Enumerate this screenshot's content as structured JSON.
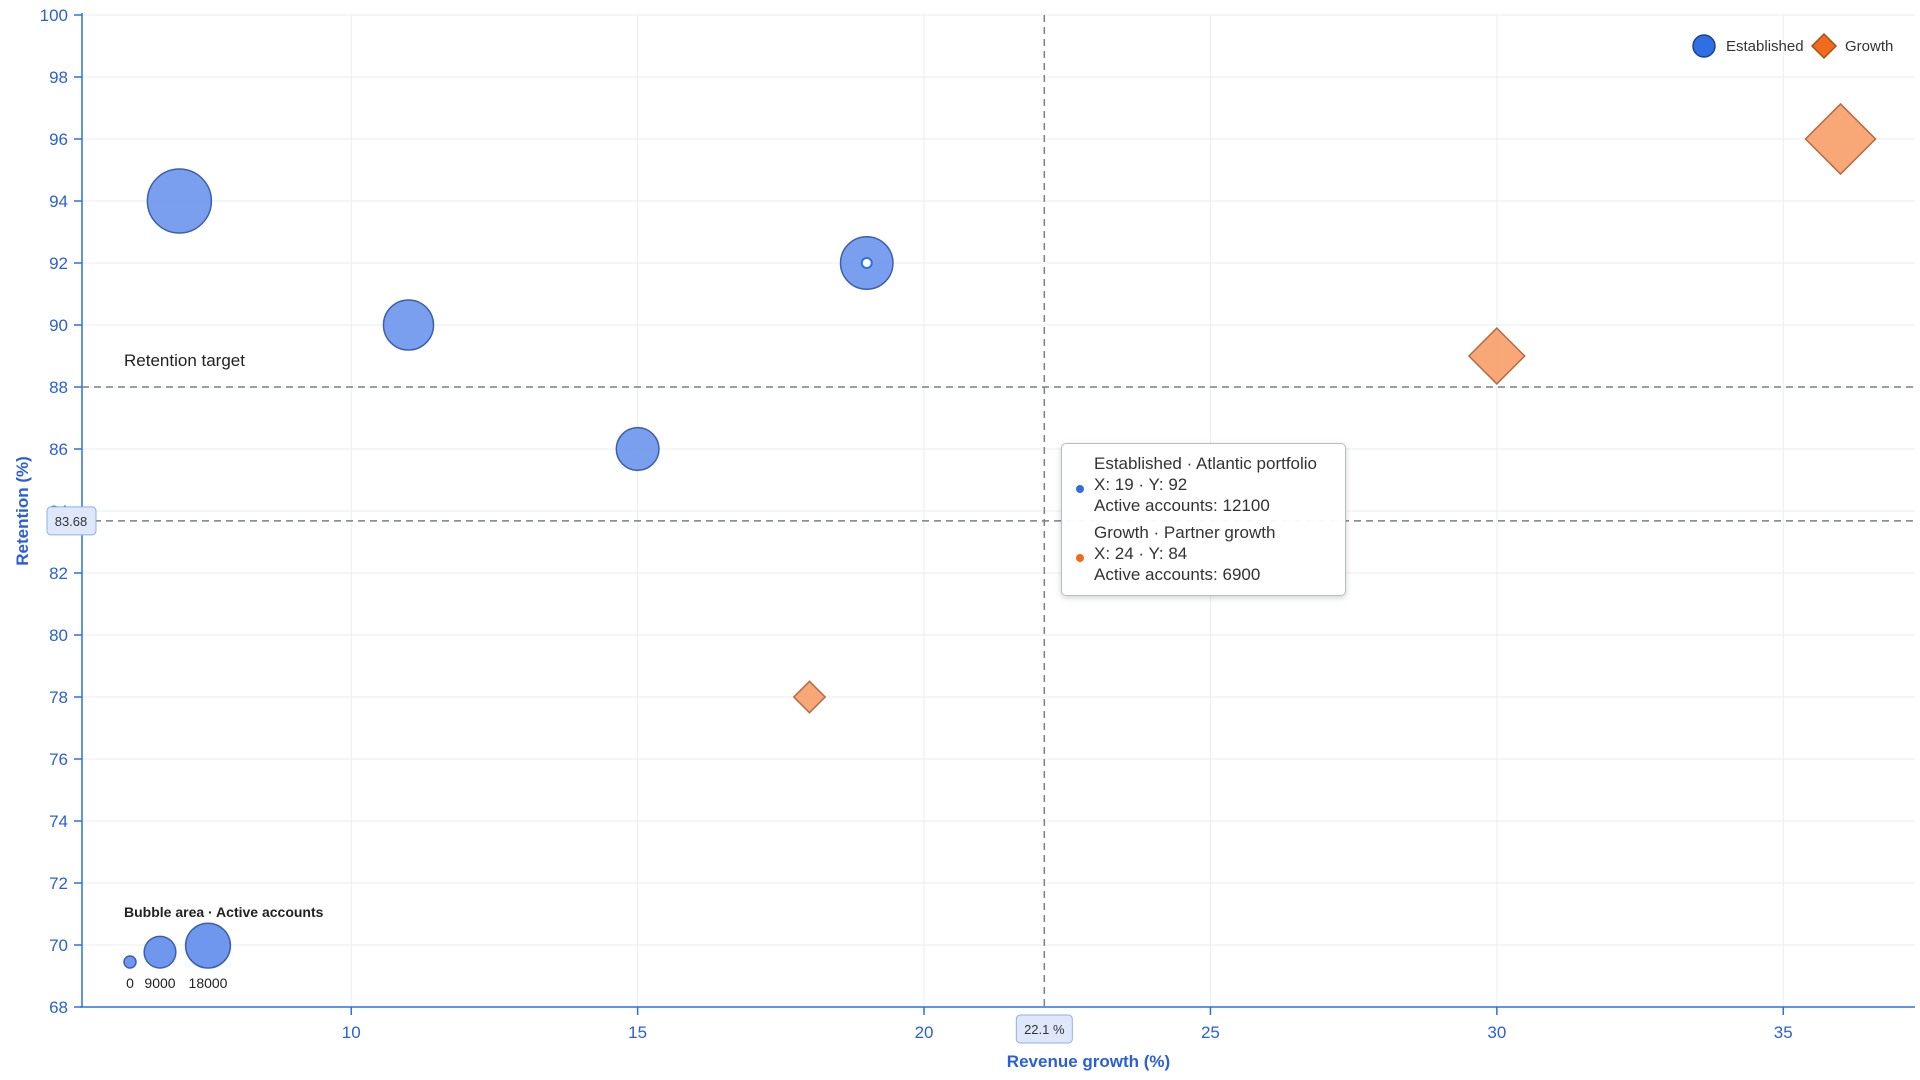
{
  "chart_data": {
    "type": "scatter",
    "subtype": "bubble",
    "xlabel": "Revenue growth (%)",
    "ylabel": "Retention (%)",
    "xlim": [
      5.3,
      37.3
    ],
    "ylim": [
      68,
      100
    ],
    "x_ticks": [
      10,
      15,
      20,
      25,
      30,
      35
    ],
    "y_ticks": [
      68,
      70,
      72,
      74,
      76,
      78,
      80,
      82,
      84,
      86,
      88,
      90,
      92,
      94,
      96,
      98,
      100
    ],
    "grid": true,
    "legend_position": "top-right",
    "size_metric": "Active accounts",
    "series": [
      {
        "name": "Established",
        "marker": "circle",
        "color": "#2f6fe4",
        "points": [
          {
            "x": 7,
            "y": 94,
            "size": 18000
          },
          {
            "x": 11,
            "y": 90,
            "size": 11000
          },
          {
            "x": 15,
            "y": 86,
            "size": 8000
          },
          {
            "x": 19,
            "y": 92,
            "size": 12100
          }
        ]
      },
      {
        "name": "Growth",
        "marker": "diamond",
        "color": "#f26b1d",
        "points": [
          {
            "x": 18,
            "y": 78,
            "size": 3000
          },
          {
            "x": 30,
            "y": 89,
            "size": 9500
          },
          {
            "x": 36,
            "y": 96,
            "size": 15000
          }
        ]
      }
    ],
    "reference_line": {
      "y": 88,
      "label": "Retention target"
    },
    "crosshair": {
      "x": 22.1,
      "y": 83.68,
      "x_label": "22.1 %",
      "y_label": "83.68"
    },
    "highlight_point": {
      "series": "Established",
      "x": 19,
      "y": 92
    },
    "size_legend": {
      "title": "Bubble area · Active accounts",
      "values": [
        0,
        9000,
        18000
      ],
      "labels": [
        "0",
        "9000",
        "18000"
      ]
    },
    "tooltip": [
      {
        "color": "#2f6fe4",
        "title": "Established · Atlantic portfolio",
        "coords": "X: 19 · Y: 92",
        "detail": "Active accounts: 12100"
      },
      {
        "color": "#f26b1d",
        "title": "Growth · Partner growth",
        "coords": "X: 24 · Y: 84",
        "detail": "Active accounts: 6900"
      }
    ]
  }
}
